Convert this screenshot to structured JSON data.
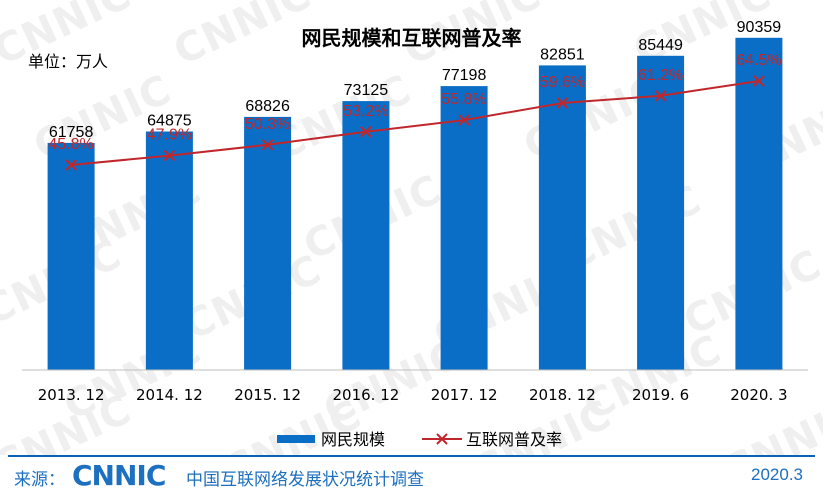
{
  "chart_title": "网民规模和互联网普及率",
  "unit_label": "单位：万人",
  "watermark_text": "CNNIC",
  "colors": {
    "bar": "#0a6ec6",
    "line": "#c0272d",
    "footer": "#1d6fbf"
  },
  "chart_data": {
    "type": "bar",
    "title": "网民规模和互联网普及率",
    "ylabel": "单位：万人",
    "categories": [
      "2013. 12",
      "2014. 12",
      "2015. 12",
      "2016. 12",
      "2017. 12",
      "2018. 12",
      "2019. 6",
      "2020. 3"
    ],
    "series": [
      {
        "name": "网民规模",
        "type": "bar",
        "values": [
          61758,
          64875,
          68826,
          73125,
          77198,
          82851,
          85449,
          90359
        ]
      },
      {
        "name": "互联网普及率",
        "type": "line",
        "values": [
          45.8,
          47.9,
          50.3,
          53.2,
          55.8,
          59.6,
          61.2,
          64.5
        ],
        "labels": [
          "45.8%",
          "47.9%",
          "50.3%",
          "53.2%",
          "55.8%",
          "59.6%",
          "61.2%",
          "64.5%"
        ]
      }
    ],
    "grid": false,
    "legend_position": "bottom"
  },
  "legend": {
    "bar_label": "网民规模",
    "line_label": "互联网普及率"
  },
  "footer": {
    "source_label": "来源：",
    "logo_text": "CNNIC",
    "source_name": "中国互联网络发展状况统计调查",
    "date": "2020.3"
  }
}
